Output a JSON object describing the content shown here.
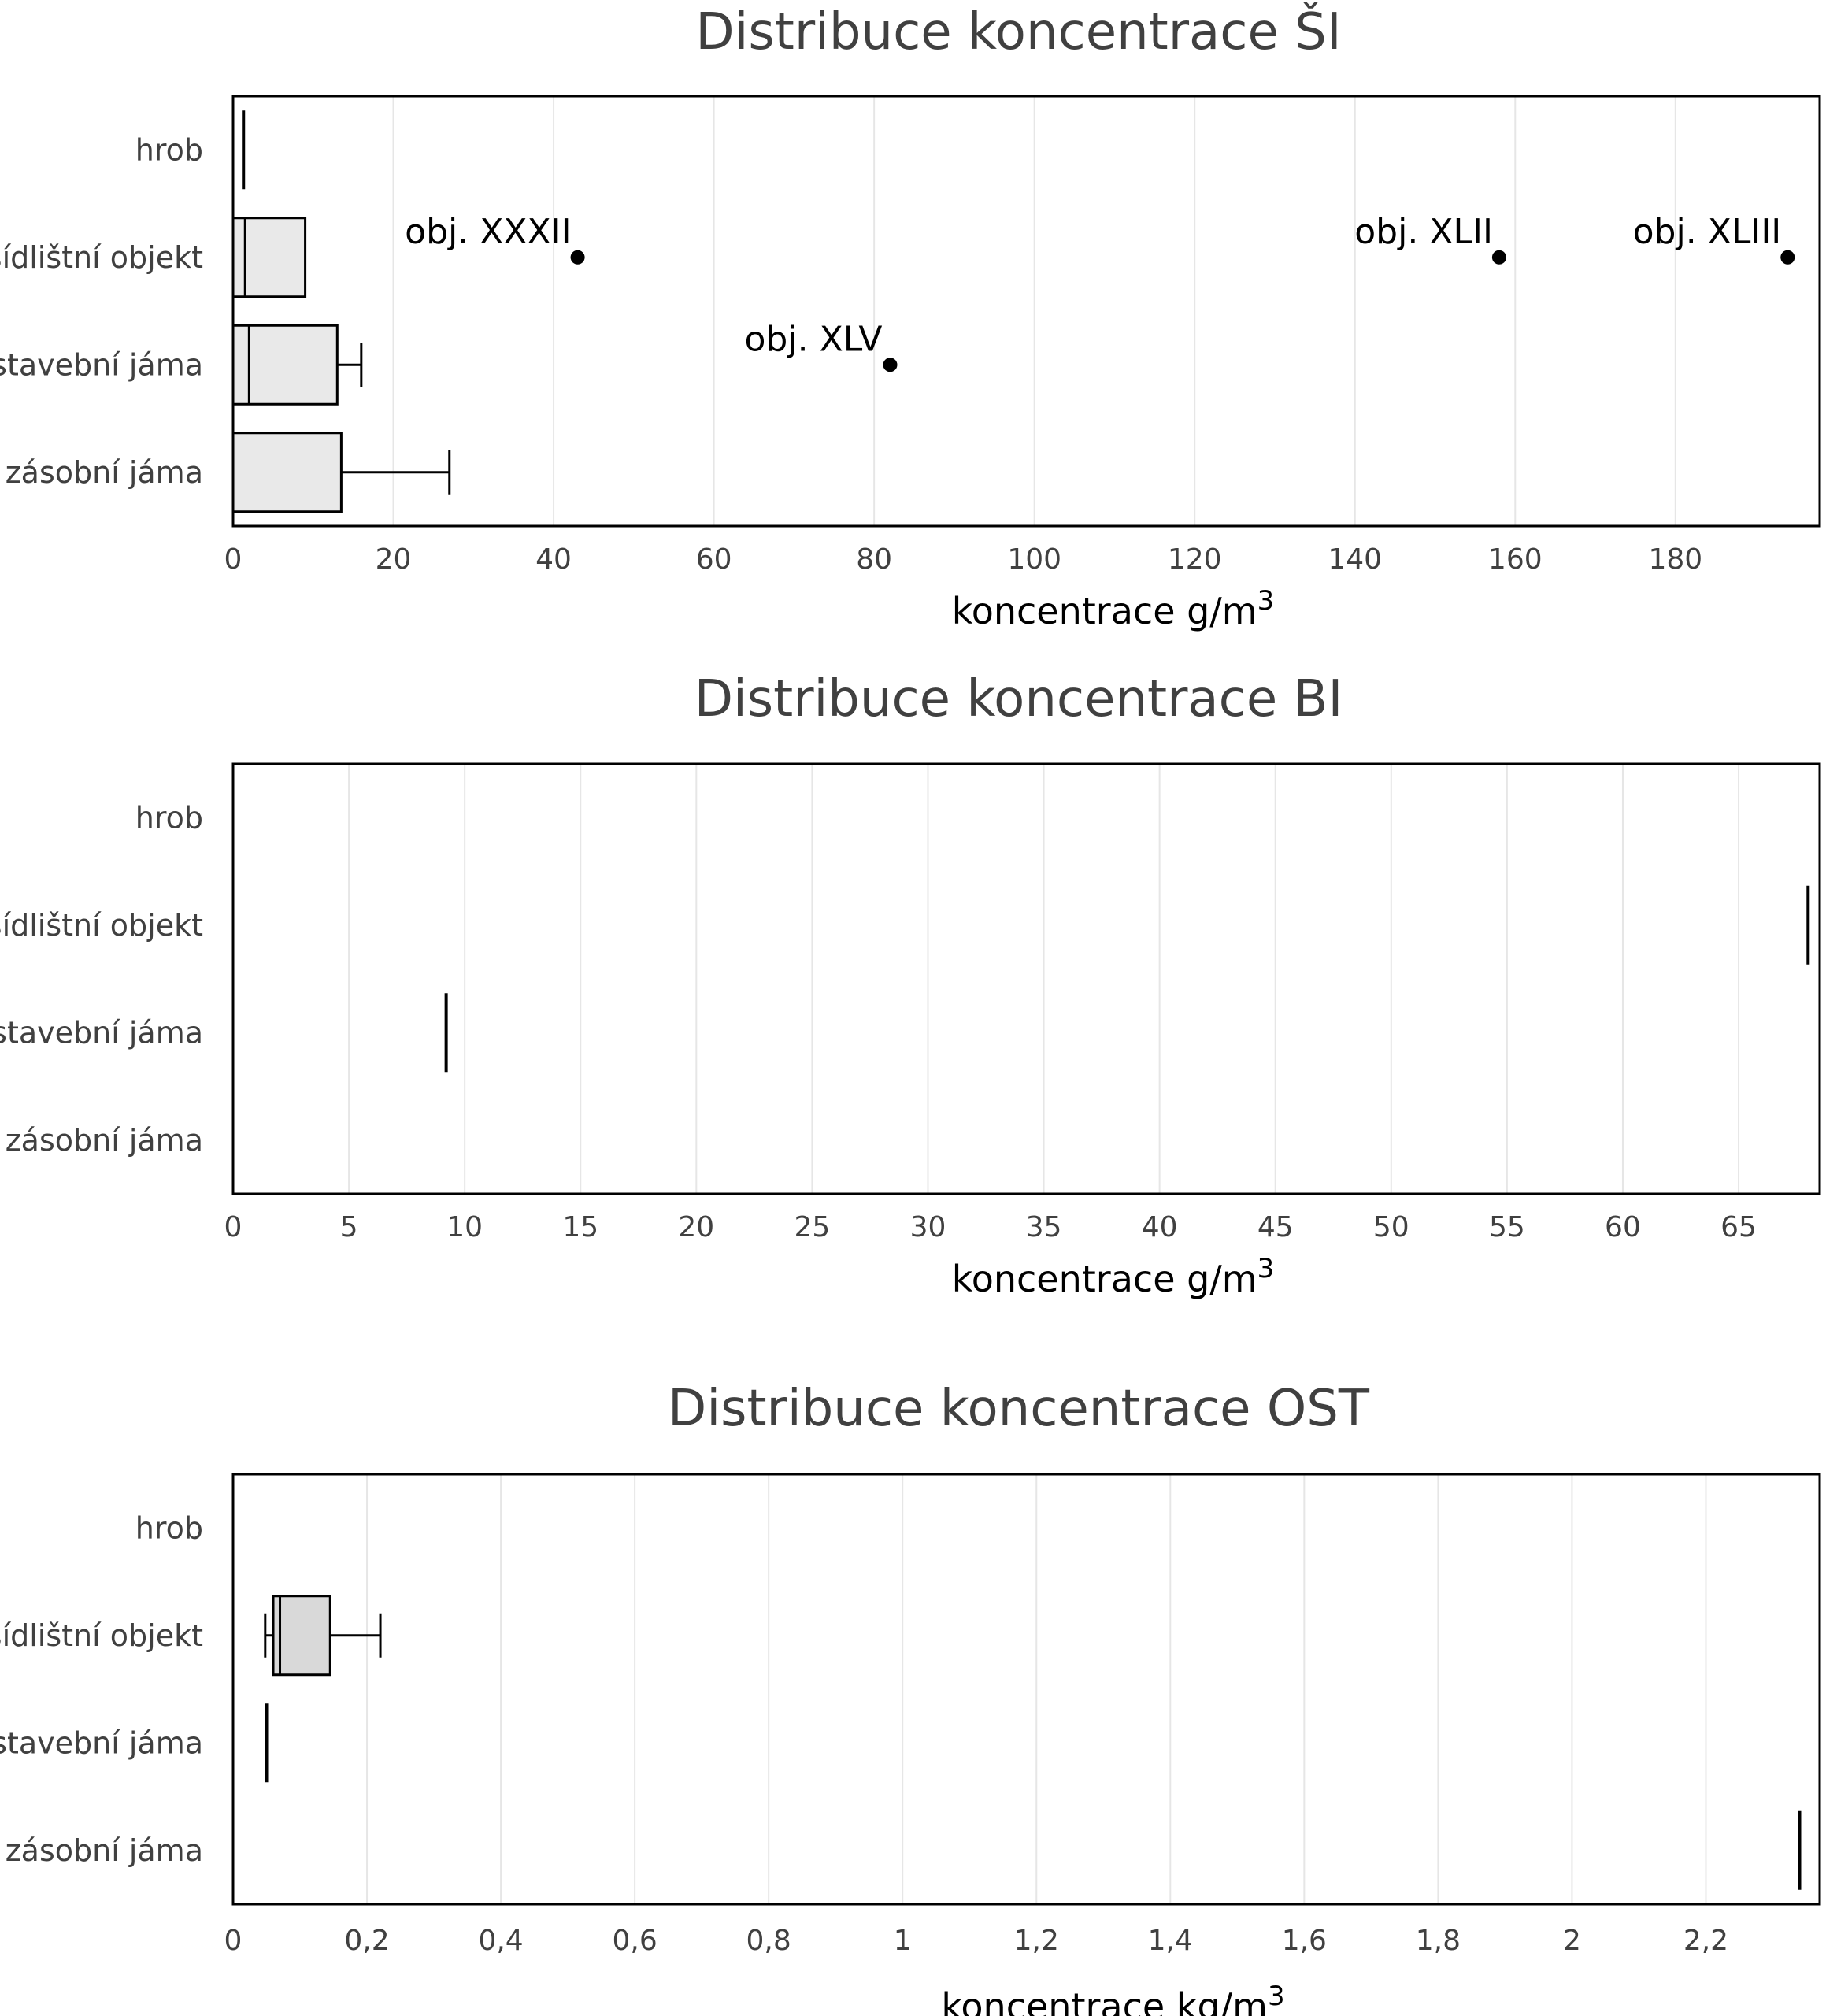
{
  "chart_data": [
    {
      "type": "boxplot",
      "title": "Distribuce koncentrace ŠI",
      "xlabel": "koncentrace g/m",
      "xlabel_sup": "3",
      "xlim": [
        0,
        198
      ],
      "xticks": [
        0,
        20,
        40,
        60,
        80,
        100,
        120,
        140,
        160,
        180
      ],
      "xtick_labels": [
        "0",
        "20",
        "40",
        "60",
        "80",
        "100",
        "120",
        "140",
        "160",
        "180"
      ],
      "grid": true,
      "categories": [
        "hrob",
        "sídlištní objekt",
        "stavební jáma",
        "zásobní jáma"
      ],
      "boxes": [
        {
          "category": "hrob",
          "min": 1.3,
          "q1": 1.3,
          "median": 1.3,
          "q3": 1.3,
          "max": 1.3
        },
        {
          "category": "sídlištní objekt",
          "min": 0,
          "q1": 0,
          "median": 1.5,
          "q3": 9,
          "max": 9
        },
        {
          "category": "stavební jáma",
          "min": 0,
          "q1": 0,
          "median": 2,
          "q3": 13,
          "max": 16
        },
        {
          "category": "zásobní jáma",
          "min": 0,
          "q1": 0,
          "median": 0,
          "q3": 13.5,
          "max": 27
        }
      ],
      "outliers": [
        {
          "category": "sídlištní objekt",
          "value": 43,
          "label": "obj. XXXII"
        },
        {
          "category": "stavební jáma",
          "value": 82,
          "label": "obj. XLV"
        },
        {
          "category": "sídlištní objekt",
          "value": 158,
          "label": "obj. XLII"
        },
        {
          "category": "sídlištní objekt",
          "value": 194,
          "label": "obj. XLIII"
        }
      ]
    },
    {
      "type": "boxplot",
      "title": "Distribuce koncentrace BI",
      "xlabel": "koncentrace g/m",
      "xlabel_sup": "3",
      "xlim": [
        0,
        68.5
      ],
      "xticks": [
        0,
        5,
        10,
        15,
        20,
        25,
        30,
        35,
        40,
        45,
        50,
        55,
        60,
        65
      ],
      "xtick_labels": [
        "0",
        "5",
        "10",
        "15",
        "20",
        "25",
        "30",
        "35",
        "40",
        "45",
        "50",
        "55",
        "60",
        "65"
      ],
      "grid": true,
      "categories": [
        "hrob",
        "sídlištní objekt",
        "stavební jáma",
        "zásobní jáma"
      ],
      "boxes": [
        {
          "category": "sídlištní objekt",
          "min": 68,
          "q1": 68,
          "median": 68,
          "q3": 68,
          "max": 68
        },
        {
          "category": "stavební jáma",
          "min": 9.2,
          "q1": 9.2,
          "median": 9.2,
          "q3": 9.2,
          "max": 9.2
        }
      ],
      "outliers": []
    },
    {
      "type": "boxplot",
      "title": "Distribuce koncentrace OST",
      "xlabel": "koncentrace kg/m",
      "xlabel_sup": "3",
      "xlim": [
        0,
        2.37
      ],
      "xticks": [
        0,
        0.2,
        0.4,
        0.6,
        0.8,
        1,
        1.2,
        1.4,
        1.6,
        1.8,
        2,
        2.2
      ],
      "xtick_labels": [
        "0",
        "0,2",
        "0,4",
        "0,6",
        "0,8",
        "1",
        "1,2",
        "1,4",
        "1,6",
        "1,8",
        "2",
        "2,2"
      ],
      "grid": true,
      "categories": [
        "hrob",
        "sídlištní objekt",
        "stavební jáma",
        "zásobní jáma"
      ],
      "boxes": [
        {
          "category": "sídlištní objekt",
          "min": 0.048,
          "q1": 0.06,
          "median": 0.07,
          "q3": 0.145,
          "max": 0.22
        },
        {
          "category": "stavební jáma",
          "min": 0.05,
          "q1": 0.05,
          "median": 0.05,
          "q3": 0.05,
          "max": 0.05
        },
        {
          "category": "zásobní jáma",
          "min": 2.34,
          "q1": 2.34,
          "median": 2.34,
          "q3": 2.34,
          "max": 2.34
        }
      ],
      "outliers": []
    }
  ],
  "colors": {
    "box_fill_si": "#e9e9e9",
    "box_fill_ost": "#d9d9d9",
    "grid": "#e6e6e6",
    "frame": "#000000",
    "text": "#404040"
  }
}
